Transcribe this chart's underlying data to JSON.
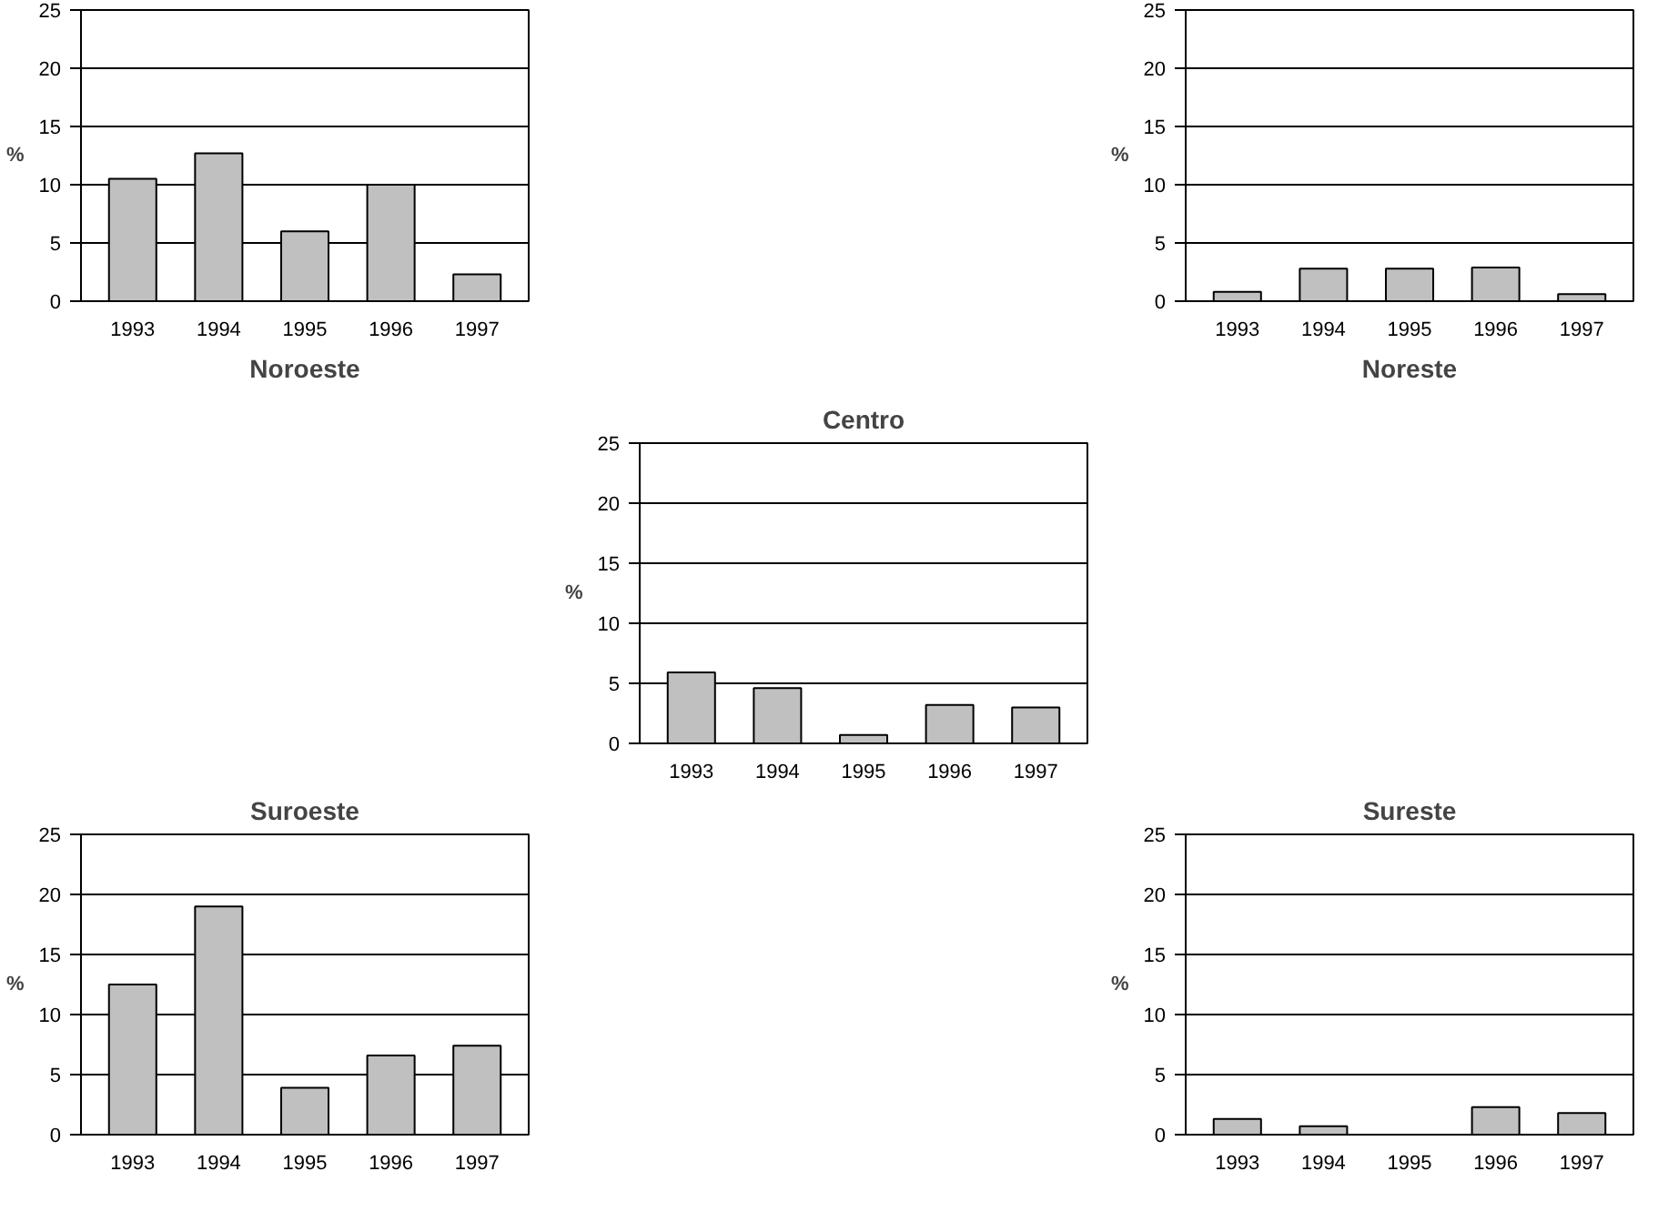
{
  "chart_data": [
    {
      "type": "bar",
      "title": "Noroeste",
      "ylabel": "%",
      "categories": [
        "1993",
        "1994",
        "1995",
        "1996",
        "1997"
      ],
      "values": [
        10.5,
        12.7,
        6,
        10,
        2.3
      ],
      "color": "#c0c0c0",
      "ylim": [
        0,
        25
      ],
      "yticks": [
        0,
        5,
        10,
        15,
        20,
        25
      ],
      "grid": "y"
    },
    {
      "type": "bar",
      "title": "Noreste",
      "ylabel": "%",
      "categories": [
        "1993",
        "1994",
        "1995",
        "1996",
        "1997"
      ],
      "values": [
        0.8,
        2.8,
        2.8,
        2.9,
        0.6
      ],
      "color": "#c0c0c0",
      "ylim": [
        0,
        25
      ],
      "yticks": [
        0,
        5,
        10,
        15,
        20,
        25
      ],
      "grid": "y"
    },
    {
      "type": "bar",
      "title": "Centro",
      "ylabel": "%",
      "categories": [
        "1993",
        "1994",
        "1995",
        "1996",
        "1997"
      ],
      "values": [
        5.9,
        4.6,
        0.7,
        3.2,
        3
      ],
      "color": "#c0c0c0",
      "ylim": [
        0,
        25
      ],
      "yticks": [
        0,
        5,
        10,
        15,
        20,
        25
      ],
      "grid": "y"
    },
    {
      "type": "bar",
      "title": "Suroeste",
      "ylabel": "%",
      "categories": [
        "1993",
        "1994",
        "1995",
        "1996",
        "1997"
      ],
      "values": [
        12.5,
        19,
        3.9,
        6.6,
        7.4
      ],
      "color": "#c0c0c0",
      "ylim": [
        0,
        25
      ],
      "yticks": [
        0,
        5,
        10,
        15,
        20,
        25
      ],
      "grid": "y"
    },
    {
      "type": "bar",
      "title": "Sureste",
      "ylabel": "%",
      "categories": [
        "1993",
        "1994",
        "1995",
        "1996",
        "1997"
      ],
      "values": [
        1.3,
        0.7,
        0,
        2.3,
        1.8
      ],
      "color": "#c0c0c0",
      "ylim": [
        0,
        25
      ],
      "yticks": [
        0,
        5,
        10,
        15,
        20,
        25
      ],
      "grid": "y"
    }
  ]
}
